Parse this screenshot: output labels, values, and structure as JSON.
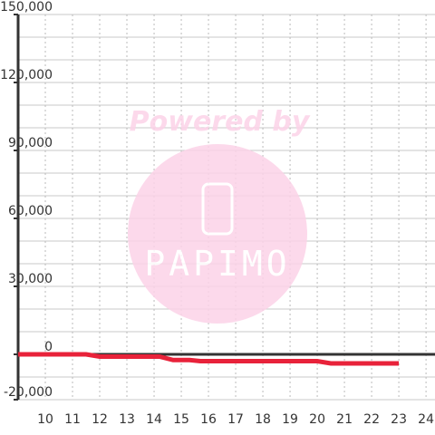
{
  "chart_data": {
    "type": "line",
    "x": [
      9,
      11.5,
      12,
      14.2,
      14.7,
      15.3,
      15.7,
      20,
      20.5,
      23
    ],
    "series": [
      {
        "color": "#e8223a",
        "values": [
          0,
          0,
          -1000,
          -1000,
          -2500,
          -2500,
          -3000,
          -3000,
          -4000,
          -4000
        ]
      }
    ],
    "xlim": [
      9,
      24.33
    ],
    "ylim": [
      -20000,
      150000
    ],
    "xticks": [
      10,
      11,
      12,
      13,
      14,
      15,
      16,
      17,
      18,
      19,
      20,
      21,
      22,
      23,
      24
    ],
    "yticks": [
      {
        "value": 150000,
        "label": "150,000"
      },
      {
        "value": 120000,
        "label": "120,000"
      },
      {
        "value": 90000,
        "label": "90,000"
      },
      {
        "value": 60000,
        "label": "60,000"
      },
      {
        "value": 30000,
        "label": "30,000"
      },
      0,
      {
        "value": -20000,
        "label": "-20,000"
      }
    ],
    "ygrid": [
      150000,
      140000,
      130000,
      120000,
      110000,
      100000,
      90000,
      80000,
      70000,
      60000,
      50000,
      40000,
      30000,
      20000,
      10000,
      0,
      -10000,
      -20000
    ],
    "grid": true,
    "watermark": {
      "line1": "Powered by",
      "line2": "PAPIMO"
    }
  }
}
